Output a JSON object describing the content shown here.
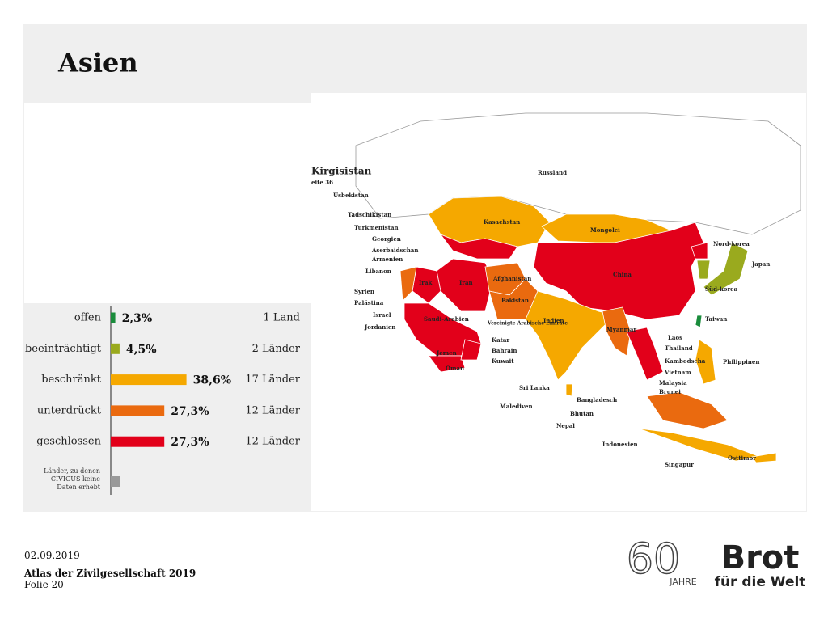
{
  "title": "Asien",
  "chart_data": {
    "type": "bar",
    "orientation": "horizontal",
    "categories": [
      "offen",
      "beeinträchtigt",
      "beschränkt",
      "unterdrückt",
      "geschlossen"
    ],
    "values": [
      2.3,
      4.5,
      38.6,
      27.3,
      27.3
    ],
    "value_labels": [
      "2,3%",
      "4,5%",
      "38,6%",
      "27,3%",
      "27,3%"
    ],
    "colors": [
      "#1a8c3c",
      "#9aaa1e",
      "#f5a800",
      "#ea6a0f",
      "#e2001a"
    ],
    "count_labels": [
      "1 Land",
      "2 Länder",
      "17 Länder",
      "12 Länder",
      "12 Länder"
    ],
    "xlim": [
      0,
      40
    ],
    "note": "Länder, zu denen CIVICUS keine Daten erhebt"
  },
  "map": {
    "labels": [
      "Kirgisistan",
      "eite 36",
      "Russland",
      "Usbekistan",
      "Tadschikistan",
      "Turkmenistan",
      "Georgien",
      "Aserbaidschan",
      "Armenien",
      "Libanon",
      "Syrien",
      "Palästina",
      "Israel",
      "Jordanien",
      "Kasachstan",
      "Mongolei",
      "China",
      "Nord-korea",
      "Japan",
      "Süd-korea",
      "Taiwan",
      "Irak",
      "Iran",
      "Afghanistan",
      "Pakistan",
      "Saudi-Arabien",
      "Vereinigte Arabische Emirate",
      "Katar",
      "Bahrain",
      "Kuwait",
      "Jemen",
      "Oman",
      "Indien",
      "Myanmar",
      "Laos",
      "Thailand",
      "Kambodscha",
      "Vietnam",
      "Malaysia",
      "Brunei",
      "Philippinen",
      "Sri Lanka",
      "Malediven",
      "Bangladesch",
      "Bhutan",
      "Nepal",
      "Indonesien",
      "Singapur",
      "Osttimor"
    ]
  },
  "footer": {
    "date": "02.09.2019",
    "publication": "Atlas der Zivilgesellschaft 2019",
    "slide": "Folie 20",
    "logo_number": "60",
    "logo_years": "JAHRE",
    "logo_brand": "Brot",
    "logo_sub": "für die Welt"
  }
}
